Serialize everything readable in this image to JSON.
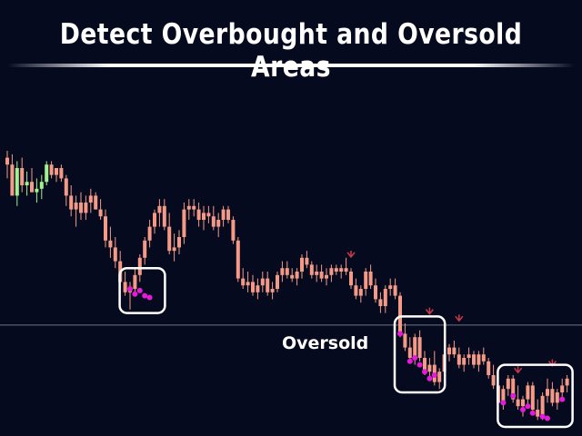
{
  "header": {
    "title": "Detect Overbought and Oversold Areas"
  },
  "colors": {
    "background": "#050a1f",
    "bullish": "#9ff28f",
    "bearish": "#f49a86",
    "oversold_dot": "#e61ad9",
    "signal_arrow": "#c8394a",
    "level_line": "#8a8f9e",
    "highlight_box": "#ffffff"
  },
  "chart_data": {
    "type": "candlestick",
    "title": "Detect Overbought and Oversold Areas",
    "xlabel": "",
    "ylabel": "",
    "ylim": [
      0,
      100
    ],
    "grid": false,
    "legend": "none",
    "level_line": {
      "value": 29.5,
      "label": "Oversold"
    },
    "candles": [
      {
        "o": 78,
        "h": 80,
        "l": 72,
        "c": 76
      },
      {
        "o": 76,
        "h": 79,
        "l": 67,
        "c": 67
      },
      {
        "o": 67,
        "h": 77,
        "l": 64,
        "c": 75
      },
      {
        "o": 75,
        "h": 78,
        "l": 68,
        "c": 70
      },
      {
        "o": 70,
        "h": 74,
        "l": 67,
        "c": 71
      },
      {
        "o": 71,
        "h": 75,
        "l": 68,
        "c": 68
      },
      {
        "o": 68,
        "h": 72,
        "l": 65,
        "c": 69
      },
      {
        "o": 69,
        "h": 73,
        "l": 66,
        "c": 71
      },
      {
        "o": 71,
        "h": 77,
        "l": 70,
        "c": 76
      },
      {
        "o": 76,
        "h": 77,
        "l": 72,
        "c": 73
      },
      {
        "o": 73,
        "h": 75,
        "l": 71,
        "c": 75
      },
      {
        "o": 75,
        "h": 76,
        "l": 71,
        "c": 72
      },
      {
        "o": 72,
        "h": 73,
        "l": 64,
        "c": 67
      },
      {
        "o": 67,
        "h": 70,
        "l": 61,
        "c": 63
      },
      {
        "o": 63,
        "h": 67,
        "l": 58,
        "c": 65
      },
      {
        "o": 65,
        "h": 68,
        "l": 60,
        "c": 62
      },
      {
        "o": 62,
        "h": 67,
        "l": 60,
        "c": 65
      },
      {
        "o": 65,
        "h": 69,
        "l": 62,
        "c": 67
      },
      {
        "o": 67,
        "h": 68,
        "l": 63,
        "c": 63
      },
      {
        "o": 63,
        "h": 66,
        "l": 60,
        "c": 61
      },
      {
        "o": 61,
        "h": 63,
        "l": 52,
        "c": 54
      },
      {
        "o": 54,
        "h": 58,
        "l": 49,
        "c": 52
      },
      {
        "o": 52,
        "h": 55,
        "l": 46,
        "c": 48
      },
      {
        "o": 48,
        "h": 51,
        "l": 40,
        "c": 42
      },
      {
        "o": 42,
        "h": 45,
        "l": 38,
        "c": 39
      },
      {
        "o": 39,
        "h": 42,
        "l": 34,
        "c": 40
      },
      {
        "o": 40,
        "h": 46,
        "l": 38,
        "c": 44
      },
      {
        "o": 44,
        "h": 50,
        "l": 42,
        "c": 49
      },
      {
        "o": 49,
        "h": 55,
        "l": 47,
        "c": 54
      },
      {
        "o": 54,
        "h": 60,
        "l": 52,
        "c": 58
      },
      {
        "o": 58,
        "h": 63,
        "l": 56,
        "c": 62
      },
      {
        "o": 62,
        "h": 66,
        "l": 58,
        "c": 64
      },
      {
        "o": 64,
        "h": 66,
        "l": 57,
        "c": 58
      },
      {
        "o": 58,
        "h": 62,
        "l": 50,
        "c": 51
      },
      {
        "o": 51,
        "h": 56,
        "l": 48,
        "c": 52
      },
      {
        "o": 52,
        "h": 57,
        "l": 50,
        "c": 55
      },
      {
        "o": 55,
        "h": 65,
        "l": 53,
        "c": 63
      },
      {
        "o": 63,
        "h": 66,
        "l": 60,
        "c": 64
      },
      {
        "o": 64,
        "h": 66,
        "l": 61,
        "c": 63
      },
      {
        "o": 63,
        "h": 65,
        "l": 58,
        "c": 60
      },
      {
        "o": 60,
        "h": 64,
        "l": 57,
        "c": 62
      },
      {
        "o": 62,
        "h": 64,
        "l": 59,
        "c": 61
      },
      {
        "o": 61,
        "h": 64,
        "l": 57,
        "c": 58
      },
      {
        "o": 58,
        "h": 62,
        "l": 55,
        "c": 60
      },
      {
        "o": 60,
        "h": 64,
        "l": 58,
        "c": 63
      },
      {
        "o": 63,
        "h": 64,
        "l": 59,
        "c": 60
      },
      {
        "o": 60,
        "h": 61,
        "l": 53,
        "c": 54
      },
      {
        "o": 54,
        "h": 55,
        "l": 42,
        "c": 43
      },
      {
        "o": 43,
        "h": 46,
        "l": 40,
        "c": 41
      },
      {
        "o": 41,
        "h": 45,
        "l": 39,
        "c": 42
      },
      {
        "o": 42,
        "h": 44,
        "l": 38,
        "c": 39
      },
      {
        "o": 39,
        "h": 43,
        "l": 37,
        "c": 41
      },
      {
        "o": 41,
        "h": 45,
        "l": 39,
        "c": 43
      },
      {
        "o": 43,
        "h": 45,
        "l": 38,
        "c": 39
      },
      {
        "o": 39,
        "h": 42,
        "l": 37,
        "c": 40
      },
      {
        "o": 40,
        "h": 45,
        "l": 39,
        "c": 44
      },
      {
        "o": 44,
        "h": 48,
        "l": 42,
        "c": 46
      },
      {
        "o": 46,
        "h": 48,
        "l": 43,
        "c": 44
      },
      {
        "o": 44,
        "h": 46,
        "l": 42,
        "c": 43
      },
      {
        "o": 43,
        "h": 46,
        "l": 41,
        "c": 45
      },
      {
        "o": 45,
        "h": 50,
        "l": 43,
        "c": 49
      },
      {
        "o": 49,
        "h": 51,
        "l": 46,
        "c": 47
      },
      {
        "o": 47,
        "h": 48,
        "l": 43,
        "c": 44
      },
      {
        "o": 44,
        "h": 47,
        "l": 42,
        "c": 45
      },
      {
        "o": 45,
        "h": 47,
        "l": 42,
        "c": 43
      },
      {
        "o": 43,
        "h": 46,
        "l": 41,
        "c": 44
      },
      {
        "o": 44,
        "h": 47,
        "l": 42,
        "c": 46
      },
      {
        "o": 46,
        "h": 47,
        "l": 44,
        "c": 45
      },
      {
        "o": 45,
        "h": 47,
        "l": 43,
        "c": 46
      },
      {
        "o": 46,
        "h": 49,
        "l": 44,
        "c": 45
      },
      {
        "o": 45,
        "h": 46,
        "l": 40,
        "c": 41
      },
      {
        "o": 41,
        "h": 43,
        "l": 37,
        "c": 38
      },
      {
        "o": 38,
        "h": 41,
        "l": 36,
        "c": 40
      },
      {
        "o": 40,
        "h": 46,
        "l": 38,
        "c": 45
      },
      {
        "o": 45,
        "h": 47,
        "l": 40,
        "c": 41
      },
      {
        "o": 41,
        "h": 43,
        "l": 36,
        "c": 37
      },
      {
        "o": 37,
        "h": 39,
        "l": 33,
        "c": 35
      },
      {
        "o": 35,
        "h": 41,
        "l": 33,
        "c": 40
      },
      {
        "o": 40,
        "h": 43,
        "l": 38,
        "c": 41
      },
      {
        "o": 41,
        "h": 43,
        "l": 37,
        "c": 38
      },
      {
        "o": 38,
        "h": 39,
        "l": 26,
        "c": 27
      },
      {
        "o": 27,
        "h": 30,
        "l": 22,
        "c": 23
      },
      {
        "o": 23,
        "h": 26,
        "l": 19,
        "c": 20
      },
      {
        "o": 20,
        "h": 27,
        "l": 18,
        "c": 26
      },
      {
        "o": 26,
        "h": 28,
        "l": 19,
        "c": 20
      },
      {
        "o": 20,
        "h": 22,
        "l": 15,
        "c": 16
      },
      {
        "o": 16,
        "h": 20,
        "l": 14,
        "c": 18
      },
      {
        "o": 18,
        "h": 22,
        "l": 12,
        "c": 13
      },
      {
        "o": 13,
        "h": 17,
        "l": 11,
        "c": 16
      },
      {
        "o": 16,
        "h": 22,
        "l": 15,
        "c": 21
      },
      {
        "o": 21,
        "h": 24,
        "l": 19,
        "c": 23
      },
      {
        "o": 23,
        "h": 25,
        "l": 20,
        "c": 21
      },
      {
        "o": 21,
        "h": 23,
        "l": 17,
        "c": 18
      },
      {
        "o": 18,
        "h": 21,
        "l": 16,
        "c": 20
      },
      {
        "o": 20,
        "h": 23,
        "l": 18,
        "c": 21
      },
      {
        "o": 21,
        "h": 22,
        "l": 17,
        "c": 18
      },
      {
        "o": 18,
        "h": 22,
        "l": 16,
        "c": 21
      },
      {
        "o": 21,
        "h": 23,
        "l": 18,
        "c": 19
      },
      {
        "o": 19,
        "h": 20,
        "l": 14,
        "c": 15
      },
      {
        "o": 15,
        "h": 18,
        "l": 11,
        "c": 12
      },
      {
        "o": 12,
        "h": 14,
        "l": 6,
        "c": 7
      },
      {
        "o": 7,
        "h": 12,
        "l": 5,
        "c": 11
      },
      {
        "o": 11,
        "h": 15,
        "l": 9,
        "c": 14
      },
      {
        "o": 14,
        "h": 15,
        "l": 7,
        "c": 8
      },
      {
        "o": 8,
        "h": 12,
        "l": 5,
        "c": 6
      },
      {
        "o": 6,
        "h": 9,
        "l": 3,
        "c": 8
      },
      {
        "o": 8,
        "h": 13,
        "l": 6,
        "c": 12
      },
      {
        "o": 12,
        "h": 13,
        "l": 4,
        "c": 5
      },
      {
        "o": 5,
        "h": 8,
        "l": 2,
        "c": 3
      },
      {
        "o": 3,
        "h": 10,
        "l": 2,
        "c": 9
      },
      {
        "o": 9,
        "h": 14,
        "l": 7,
        "c": 11
      },
      {
        "o": 11,
        "h": 13,
        "l": 6,
        "c": 7
      },
      {
        "o": 7,
        "h": 11,
        "l": 5,
        "c": 10
      },
      {
        "o": 10,
        "h": 14,
        "l": 8,
        "c": 12
      },
      {
        "o": 12,
        "h": 15,
        "l": 10,
        "c": 14
      }
    ],
    "oversold_dots": [
      {
        "i": 25,
        "v": 40
      },
      {
        "i": 26,
        "v": 38.5
      },
      {
        "i": 27,
        "v": 39.5
      },
      {
        "i": 28,
        "v": 38
      },
      {
        "i": 29,
        "v": 37.5
      },
      {
        "i": 80,
        "v": 27
      },
      {
        "i": 82,
        "v": 19
      },
      {
        "i": 83,
        "v": 20
      },
      {
        "i": 84,
        "v": 18
      },
      {
        "i": 85,
        "v": 16
      },
      {
        "i": 86,
        "v": 14
      },
      {
        "i": 87,
        "v": 15
      },
      {
        "i": 101,
        "v": 7
      },
      {
        "i": 103,
        "v": 9
      },
      {
        "i": 105,
        "v": 5
      },
      {
        "i": 106,
        "v": 6
      },
      {
        "i": 107,
        "v": 4
      },
      {
        "i": 109,
        "v": 3
      },
      {
        "i": 110,
        "v": 2.5
      },
      {
        "i": 113,
        "v": 8
      }
    ],
    "signal_arrows": [
      {
        "i": 70,
        "v": 49.5,
        "dir": "down"
      },
      {
        "i": 86,
        "v": 33,
        "dir": "down"
      },
      {
        "i": 92,
        "v": 31,
        "dir": "down"
      },
      {
        "i": 104,
        "v": 16,
        "dir": "down"
      },
      {
        "i": 111,
        "v": 18,
        "dir": "down"
      }
    ],
    "highlight_zones": [
      {
        "from": 24,
        "to": 31,
        "ylow": 33,
        "yhigh": 46
      },
      {
        "from": 80,
        "to": 88,
        "ylow": 10,
        "yhigh": 32
      },
      {
        "from": 101,
        "to": 114,
        "ylow": 0,
        "yhigh": 18
      }
    ]
  }
}
